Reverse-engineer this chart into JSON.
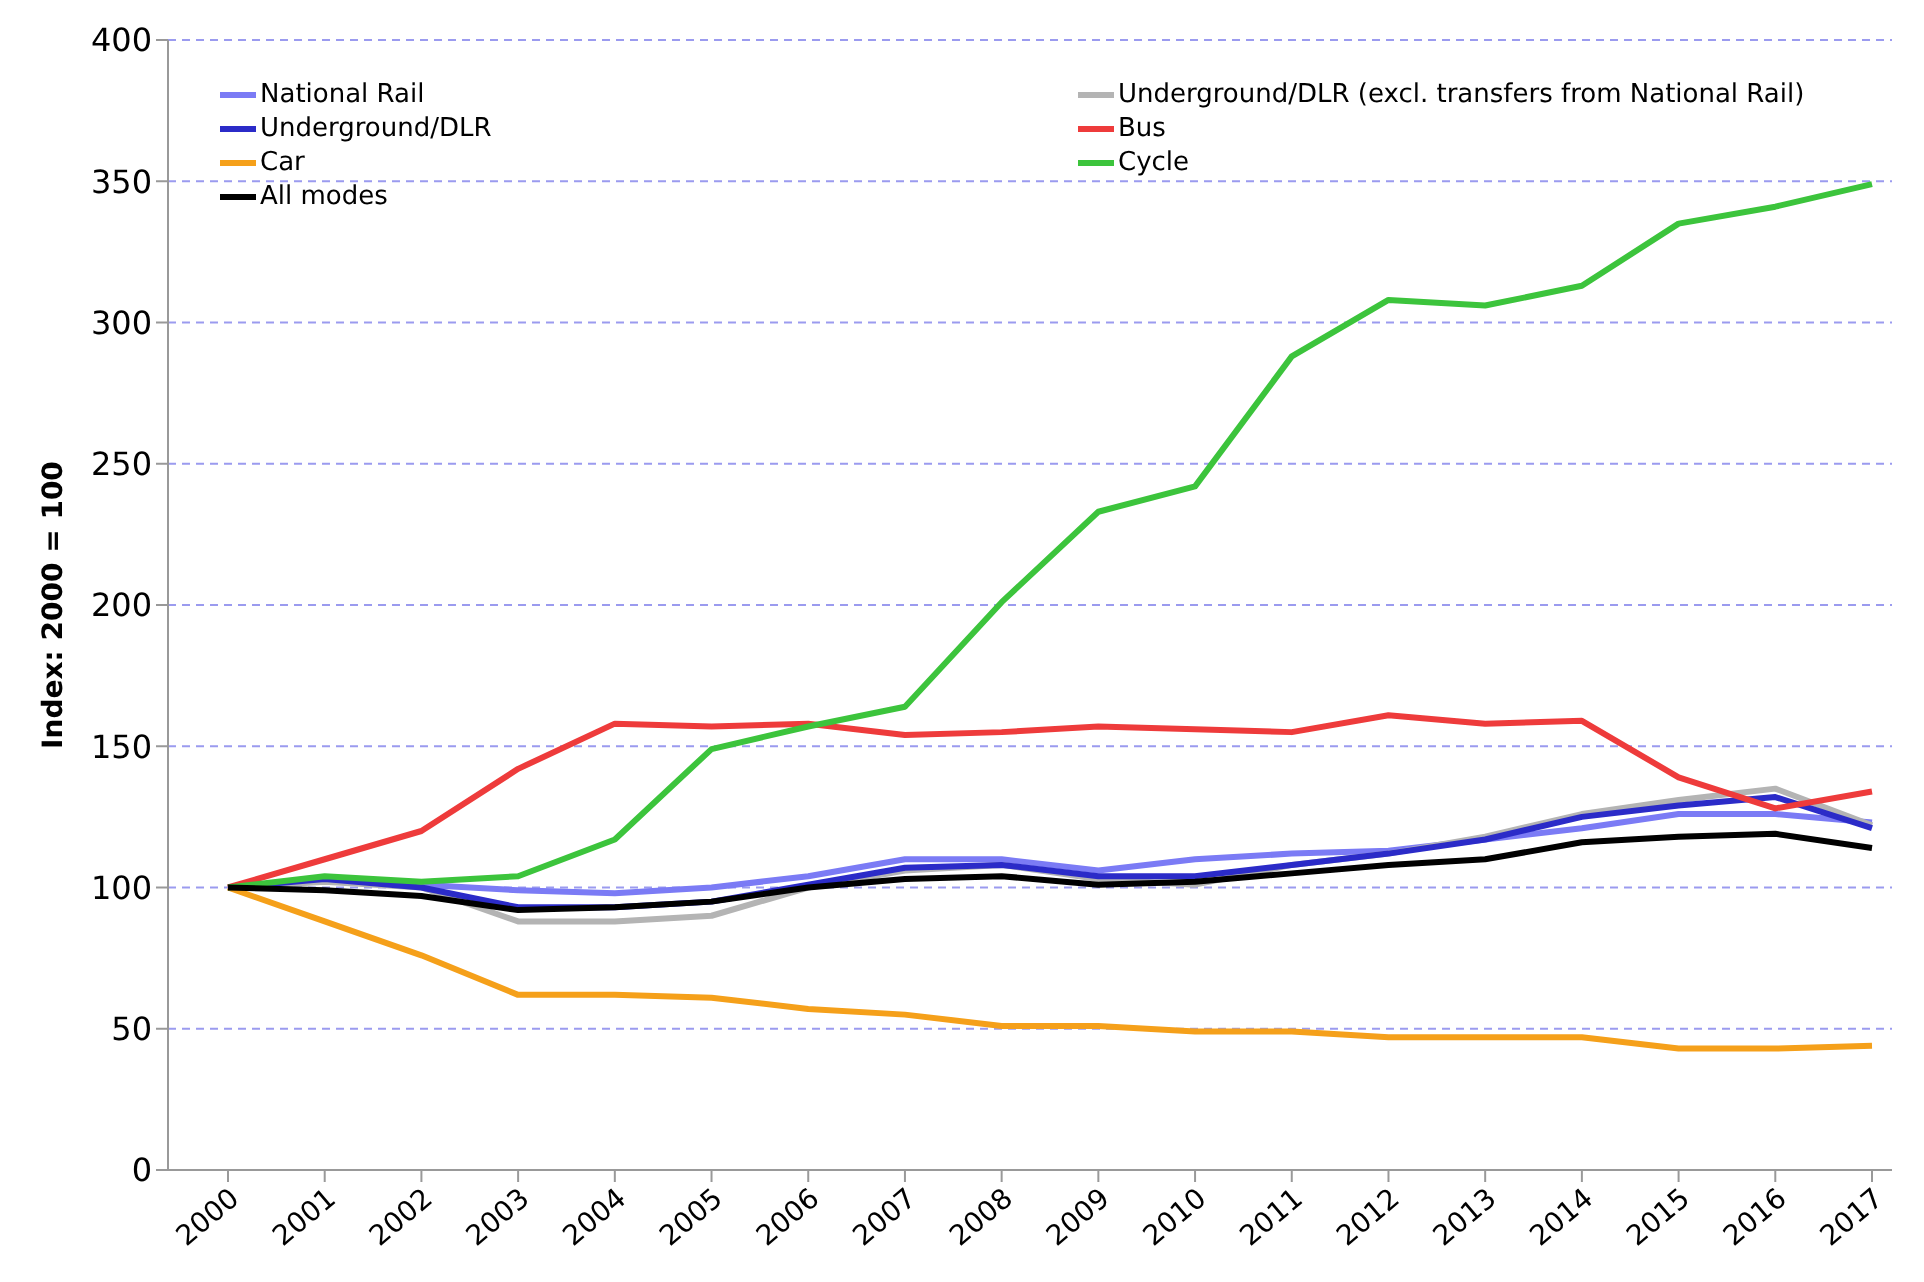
{
  "chart_data": {
    "type": "line",
    "ylabel": "Index: 2000 = 100",
    "categories": [
      "2000",
      "2001",
      "2002",
      "2003",
      "2004",
      "2005",
      "2006",
      "2007",
      "2008",
      "2009",
      "2010",
      "2011",
      "2012",
      "2013",
      "2014",
      "2015",
      "2016",
      "2017"
    ],
    "series": [
      {
        "name": "National Rail",
        "color": "#7b7bf5",
        "values": [
          100,
          103,
          101,
          99,
          98,
          100,
          104,
          110,
          110,
          106,
          110,
          112,
          113,
          117,
          121,
          126,
          126,
          123
        ]
      },
      {
        "name": "Underground/DLR (excl. transfers from National Rail)",
        "color": "#b4b4b4",
        "values": [
          100,
          102,
          100,
          88,
          88,
          90,
          100,
          106,
          108,
          103,
          101,
          108,
          112,
          118,
          126,
          131,
          135,
          122
        ]
      },
      {
        "name": "Underground/DLR",
        "color": "#2b2bc8",
        "values": [
          100,
          103,
          100,
          93,
          93,
          95,
          101,
          107,
          108,
          104,
          104,
          108,
          112,
          117,
          125,
          129,
          132,
          121
        ]
      },
      {
        "name": "Bus",
        "color": "#ee3b3b",
        "values": [
          100,
          110,
          120,
          142,
          158,
          157,
          158,
          154,
          155,
          157,
          156,
          155,
          161,
          158,
          159,
          139,
          128,
          134
        ]
      },
      {
        "name": "Car",
        "color": "#f5a01a",
        "values": [
          100,
          88,
          76,
          62,
          62,
          61,
          57,
          55,
          51,
          51,
          49,
          49,
          47,
          47,
          47,
          43,
          43,
          44
        ]
      },
      {
        "name": "Cycle",
        "color": "#3cc43c",
        "values": [
          100,
          104,
          102,
          104,
          117,
          149,
          157,
          164,
          201,
          233,
          242,
          288,
          308,
          306,
          313,
          335,
          341,
          349
        ]
      },
      {
        "name": "All modes",
        "color": "#000000",
        "values": [
          100,
          99,
          97,
          92,
          93,
          95,
          100,
          103,
          104,
          101,
          102,
          105,
          108,
          110,
          116,
          118,
          119,
          114
        ]
      }
    ],
    "ylim": [
      0,
      400
    ],
    "yticks": [
      0,
      50,
      100,
      150,
      200,
      250,
      300,
      350,
      400
    ],
    "grid": "y",
    "legend": "top",
    "marker": "none",
    "line_style": "solid"
  }
}
